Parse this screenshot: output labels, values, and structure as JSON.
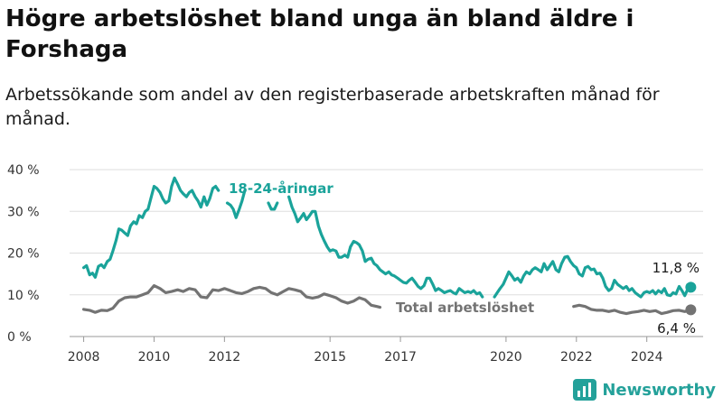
{
  "title": "Högre arbetslöshet bland unga än bland äldre i Forshaga",
  "subtitle": "Arbetssökande som andel av den registerbaserade arbetskraften månad för månad.",
  "brand": {
    "name": "Newsworthy"
  },
  "colors": {
    "youth": "#1aa39a",
    "total": "#737373",
    "grid": "#dedede",
    "axis": "#999999"
  },
  "chart_data": {
    "type": "line",
    "x_unit": "year (decimal)",
    "y_unit": "percent",
    "ylim": [
      0,
      40
    ],
    "xlim": [
      2007.6,
      2025.6
    ],
    "y_ticks": [
      {
        "value": 0,
        "label": "0 %"
      },
      {
        "value": 10,
        "label": "10 %"
      },
      {
        "value": 20,
        "label": "20 %"
      },
      {
        "value": 30,
        "label": "30 %"
      },
      {
        "value": 40,
        "label": "40 %"
      }
    ],
    "x_ticks": [
      {
        "value": 2008,
        "label": "2008"
      },
      {
        "value": 2010,
        "label": "2010"
      },
      {
        "value": 2012,
        "label": "2012"
      },
      {
        "value": 2015,
        "label": "2015"
      },
      {
        "value": 2017,
        "label": "2017"
      },
      {
        "value": 2020,
        "label": "2020"
      },
      {
        "value": 2022,
        "label": "2022"
      },
      {
        "value": 2024,
        "label": "2024"
      }
    ],
    "grid": "horizontal",
    "series": [
      {
        "name": "18-24-åringar",
        "color_key": "youth",
        "last_value_label": "11,8 %",
        "points": [
          [
            2008.0,
            16.5
          ],
          [
            2008.08,
            17.0
          ],
          [
            2008.17,
            14.8
          ],
          [
            2008.25,
            15.2
          ],
          [
            2008.33,
            14.2
          ],
          [
            2008.42,
            16.8
          ],
          [
            2008.5,
            17.2
          ],
          [
            2008.58,
            16.5
          ],
          [
            2008.67,
            18.0
          ],
          [
            2008.75,
            18.5
          ],
          [
            2008.83,
            20.5
          ],
          [
            2008.92,
            23.0
          ],
          [
            2009.0,
            25.8
          ],
          [
            2009.08,
            25.5
          ],
          [
            2009.17,
            24.8
          ],
          [
            2009.25,
            24.2
          ],
          [
            2009.33,
            26.5
          ],
          [
            2009.42,
            27.5
          ],
          [
            2009.5,
            27.0
          ],
          [
            2009.58,
            29.0
          ],
          [
            2009.67,
            28.5
          ],
          [
            2009.75,
            30.0
          ],
          [
            2009.83,
            30.5
          ],
          [
            2009.92,
            33.5
          ],
          [
            2010.0,
            36.0
          ],
          [
            2010.08,
            35.5
          ],
          [
            2010.17,
            34.5
          ],
          [
            2010.25,
            33.0
          ],
          [
            2010.33,
            32.0
          ],
          [
            2010.42,
            32.5
          ],
          [
            2010.5,
            36.0
          ],
          [
            2010.58,
            38.0
          ],
          [
            2010.67,
            36.5
          ],
          [
            2010.75,
            35.0
          ],
          [
            2010.83,
            34.2
          ],
          [
            2010.92,
            33.5
          ],
          [
            2011.0,
            34.5
          ],
          [
            2011.08,
            35.0
          ],
          [
            2011.17,
            33.5
          ],
          [
            2011.25,
            32.5
          ],
          [
            2011.33,
            31.0
          ],
          [
            2011.42,
            33.5
          ],
          [
            2011.5,
            31.5
          ],
          [
            2011.58,
            33.0
          ],
          [
            2011.67,
            35.5
          ],
          [
            2011.75,
            36.0
          ],
          [
            2011.83,
            35.0
          ],
          [
            2012.0,
            null
          ],
          [
            2012.08,
            32.0
          ],
          [
            2012.17,
            31.5
          ],
          [
            2012.25,
            30.5
          ],
          [
            2012.33,
            28.5
          ],
          [
            2012.42,
            30.5
          ],
          [
            2012.5,
            32.5
          ],
          [
            2012.58,
            35.0
          ],
          [
            2012.67,
            null
          ],
          [
            2013.25,
            32.0
          ],
          [
            2013.33,
            30.5
          ],
          [
            2013.42,
            30.5
          ],
          [
            2013.5,
            32.0
          ],
          [
            2013.58,
            null
          ],
          [
            2013.83,
            33.5
          ],
          [
            2013.92,
            31.0
          ],
          [
            2014.0,
            29.5
          ],
          [
            2014.08,
            27.5
          ],
          [
            2014.17,
            28.5
          ],
          [
            2014.25,
            29.5
          ],
          [
            2014.33,
            28.0
          ],
          [
            2014.42,
            29.0
          ],
          [
            2014.5,
            30.0
          ],
          [
            2014.58,
            30.0
          ],
          [
            2014.67,
            26.5
          ],
          [
            2014.75,
            24.5
          ],
          [
            2014.83,
            23.0
          ],
          [
            2014.92,
            21.5
          ],
          [
            2015.0,
            20.5
          ],
          [
            2015.08,
            20.8
          ],
          [
            2015.17,
            20.5
          ],
          [
            2015.25,
            19.0
          ],
          [
            2015.33,
            19.0
          ],
          [
            2015.42,
            19.5
          ],
          [
            2015.5,
            19.0
          ],
          [
            2015.58,
            21.5
          ],
          [
            2015.67,
            22.8
          ],
          [
            2015.75,
            22.5
          ],
          [
            2015.83,
            22.0
          ],
          [
            2015.92,
            20.5
          ],
          [
            2016.0,
            18.0
          ],
          [
            2016.08,
            18.5
          ],
          [
            2016.17,
            18.8
          ],
          [
            2016.25,
            17.5
          ],
          [
            2016.33,
            17.0
          ],
          [
            2016.42,
            16.0
          ],
          [
            2016.5,
            15.5
          ],
          [
            2016.58,
            15.0
          ],
          [
            2016.67,
            15.5
          ],
          [
            2016.75,
            14.8
          ],
          [
            2016.83,
            14.5
          ],
          [
            2016.92,
            14.0
          ],
          [
            2017.0,
            13.5
          ],
          [
            2017.08,
            13.0
          ],
          [
            2017.17,
            12.8
          ],
          [
            2017.25,
            13.5
          ],
          [
            2017.33,
            14.0
          ],
          [
            2017.42,
            13.0
          ],
          [
            2017.5,
            12.0
          ],
          [
            2017.58,
            11.5
          ],
          [
            2017.67,
            12.2
          ],
          [
            2017.75,
            14.0
          ],
          [
            2017.83,
            14.0
          ],
          [
            2017.92,
            12.5
          ],
          [
            2018.0,
            11.0
          ],
          [
            2018.08,
            11.5
          ],
          [
            2018.17,
            11.0
          ],
          [
            2018.25,
            10.5
          ],
          [
            2018.33,
            10.8
          ],
          [
            2018.42,
            11.0
          ],
          [
            2018.5,
            10.5
          ],
          [
            2018.58,
            10.2
          ],
          [
            2018.67,
            11.5
          ],
          [
            2018.75,
            11.0
          ],
          [
            2018.83,
            10.5
          ],
          [
            2018.92,
            10.8
          ],
          [
            2019.0,
            10.5
          ],
          [
            2019.08,
            11.0
          ],
          [
            2019.17,
            10.2
          ],
          [
            2019.25,
            10.5
          ],
          [
            2019.33,
            9.5
          ],
          [
            2019.42,
            null
          ],
          [
            2019.67,
            9.5
          ],
          [
            2019.75,
            10.5
          ],
          [
            2019.83,
            11.5
          ],
          [
            2019.92,
            12.5
          ],
          [
            2020.0,
            14.0
          ],
          [
            2020.08,
            15.5
          ],
          [
            2020.17,
            14.5
          ],
          [
            2020.25,
            13.5
          ],
          [
            2020.33,
            14.0
          ],
          [
            2020.42,
            13.0
          ],
          [
            2020.5,
            14.5
          ],
          [
            2020.58,
            15.5
          ],
          [
            2020.67,
            15.0
          ],
          [
            2020.75,
            16.0
          ],
          [
            2020.83,
            16.5
          ],
          [
            2020.92,
            16.0
          ],
          [
            2021.0,
            15.5
          ],
          [
            2021.08,
            17.5
          ],
          [
            2021.17,
            16.0
          ],
          [
            2021.25,
            17.0
          ],
          [
            2021.33,
            18.0
          ],
          [
            2021.42,
            16.0
          ],
          [
            2021.5,
            15.5
          ],
          [
            2021.58,
            17.5
          ],
          [
            2021.67,
            19.0
          ],
          [
            2021.75,
            19.2
          ],
          [
            2021.83,
            18.0
          ],
          [
            2021.92,
            17.0
          ],
          [
            2022.0,
            16.5
          ],
          [
            2022.08,
            15.0
          ],
          [
            2022.17,
            14.5
          ],
          [
            2022.25,
            16.5
          ],
          [
            2022.33,
            16.8
          ],
          [
            2022.42,
            16.0
          ],
          [
            2022.5,
            16.2
          ],
          [
            2022.58,
            15.0
          ],
          [
            2022.67,
            15.2
          ],
          [
            2022.75,
            14.0
          ],
          [
            2022.83,
            12.0
          ],
          [
            2022.92,
            11.0
          ],
          [
            2023.0,
            11.5
          ],
          [
            2023.08,
            13.5
          ],
          [
            2023.17,
            12.5
          ],
          [
            2023.25,
            12.0
          ],
          [
            2023.33,
            11.5
          ],
          [
            2023.42,
            12.0
          ],
          [
            2023.5,
            11.0
          ],
          [
            2023.58,
            11.5
          ],
          [
            2023.67,
            10.5
          ],
          [
            2023.75,
            10.0
          ],
          [
            2023.83,
            9.5
          ],
          [
            2023.92,
            10.5
          ],
          [
            2024.0,
            10.8
          ],
          [
            2024.08,
            10.5
          ],
          [
            2024.17,
            11.0
          ],
          [
            2024.25,
            10.2
          ],
          [
            2024.33,
            11.0
          ],
          [
            2024.42,
            10.5
          ],
          [
            2024.5,
            11.5
          ],
          [
            2024.58,
            10.0
          ],
          [
            2024.67,
            9.8
          ],
          [
            2024.75,
            10.5
          ],
          [
            2024.83,
            10.2
          ],
          [
            2024.92,
            12.0
          ],
          [
            2025.0,
            11.0
          ],
          [
            2025.08,
            9.8
          ],
          [
            2025.17,
            11.5
          ],
          [
            2025.25,
            11.8
          ]
        ]
      },
      {
        "name": "Total arbetslöshet",
        "color_key": "total",
        "last_value_label": "6,4 %",
        "points": [
          [
            2008.0,
            6.5
          ],
          [
            2008.17,
            6.3
          ],
          [
            2008.33,
            5.8
          ],
          [
            2008.5,
            6.3
          ],
          [
            2008.67,
            6.2
          ],
          [
            2008.83,
            6.8
          ],
          [
            2009.0,
            8.5
          ],
          [
            2009.17,
            9.3
          ],
          [
            2009.33,
            9.5
          ],
          [
            2009.5,
            9.5
          ],
          [
            2009.67,
            10.0
          ],
          [
            2009.83,
            10.5
          ],
          [
            2010.0,
            12.2
          ],
          [
            2010.17,
            11.5
          ],
          [
            2010.33,
            10.5
          ],
          [
            2010.5,
            10.8
          ],
          [
            2010.67,
            11.2
          ],
          [
            2010.83,
            10.8
          ],
          [
            2011.0,
            11.5
          ],
          [
            2011.17,
            11.2
          ],
          [
            2011.33,
            9.5
          ],
          [
            2011.5,
            9.3
          ],
          [
            2011.67,
            11.2
          ],
          [
            2011.83,
            11.0
          ],
          [
            2012.0,
            11.5
          ],
          [
            2012.17,
            11.0
          ],
          [
            2012.33,
            10.5
          ],
          [
            2012.5,
            10.3
          ],
          [
            2012.67,
            10.8
          ],
          [
            2012.83,
            11.5
          ],
          [
            2013.0,
            11.8
          ],
          [
            2013.17,
            11.5
          ],
          [
            2013.33,
            10.5
          ],
          [
            2013.5,
            10.0
          ],
          [
            2013.67,
            10.8
          ],
          [
            2013.83,
            11.5
          ],
          [
            2014.0,
            11.2
          ],
          [
            2014.17,
            10.8
          ],
          [
            2014.33,
            9.5
          ],
          [
            2014.5,
            9.2
          ],
          [
            2014.67,
            9.5
          ],
          [
            2014.83,
            10.2
          ],
          [
            2015.0,
            9.8
          ],
          [
            2015.17,
            9.3
          ],
          [
            2015.33,
            8.5
          ],
          [
            2015.5,
            8.0
          ],
          [
            2015.67,
            8.5
          ],
          [
            2015.83,
            9.3
          ],
          [
            2016.0,
            8.8
          ],
          [
            2016.17,
            7.5
          ],
          [
            2016.33,
            7.2
          ],
          [
            2016.42,
            7.0
          ],
          [
            2016.5,
            null
          ],
          [
            2021.92,
            7.2
          ],
          [
            2022.08,
            7.5
          ],
          [
            2022.25,
            7.2
          ],
          [
            2022.42,
            6.5
          ],
          [
            2022.58,
            6.3
          ],
          [
            2022.75,
            6.3
          ],
          [
            2022.92,
            6.0
          ],
          [
            2023.08,
            6.3
          ],
          [
            2023.25,
            5.8
          ],
          [
            2023.42,
            5.5
          ],
          [
            2023.58,
            5.8
          ],
          [
            2023.75,
            6.0
          ],
          [
            2023.92,
            6.3
          ],
          [
            2024.08,
            6.0
          ],
          [
            2024.25,
            6.2
          ],
          [
            2024.42,
            5.5
          ],
          [
            2024.58,
            5.8
          ],
          [
            2024.75,
            6.2
          ],
          [
            2024.92,
            6.3
          ],
          [
            2025.08,
            6.0
          ],
          [
            2025.25,
            6.4
          ]
        ]
      }
    ]
  }
}
